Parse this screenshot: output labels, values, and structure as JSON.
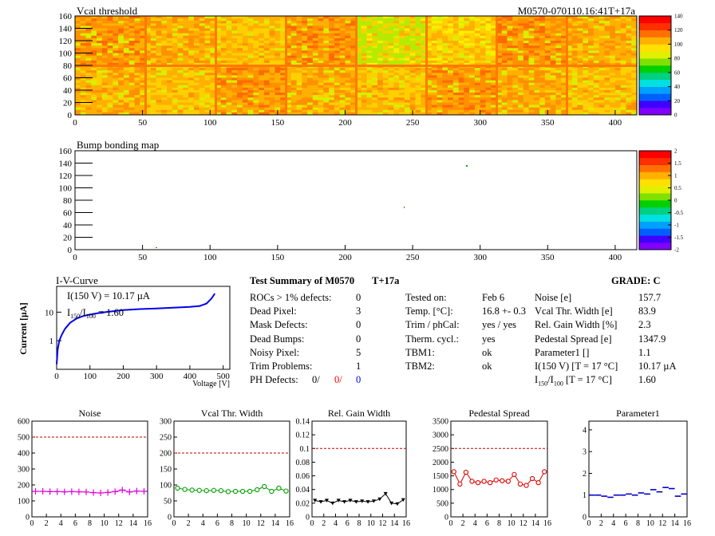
{
  "module_id": "M0570-070110.16:41T+17a",
  "colors": {
    "red": "#ff0000",
    "blue": "#0000ff",
    "magenta": "#e000e0",
    "green": "#00a000",
    "black": "#000000",
    "dashed": "#c00000"
  },
  "vcal_map": {
    "title": "Vcal threshold",
    "x_ticks": [
      "0",
      "50",
      "100",
      "150",
      "200",
      "250",
      "300",
      "350",
      "400"
    ],
    "y_ticks": [
      "0",
      "20",
      "40",
      "60",
      "80",
      "100",
      "120",
      "140",
      "160"
    ],
    "palette_ticks": [
      "0",
      "20",
      "40",
      "60",
      "80",
      "100",
      "120",
      "140"
    ],
    "xlim": [
      0,
      416
    ],
    "ylim": [
      0,
      160
    ]
  },
  "bump_map": {
    "title": "Bump bonding map",
    "x_ticks": [
      "0",
      "50",
      "100",
      "150",
      "200",
      "250",
      "300",
      "350",
      "400"
    ],
    "y_ticks": [
      "0",
      "20",
      "40",
      "60",
      "80",
      "100",
      "120",
      "140",
      "160"
    ],
    "palette_ticks": [
      "-2",
      "-1.5",
      "-1",
      "-0.5",
      "0",
      "0.5",
      "1",
      "1.5",
      "2"
    ],
    "xlim": [
      0,
      416
    ],
    "ylim": [
      0,
      160
    ]
  },
  "iv_curve": {
    "title": "I-V-Curve",
    "annotation_1": "I(150 V) = 10.17 µA",
    "annotation_2_a": "I",
    "annotation_2_b": "150",
    "annotation_2_c": "/I",
    "annotation_2_d": "100",
    "annotation_2_e": " = 1.60",
    "ylabel": "Current [µA]",
    "xlabel": "Voltage [V]",
    "x_ticks": [
      "0",
      "100",
      "200",
      "300",
      "400",
      "500"
    ],
    "y_ticks": [
      "1",
      "10"
    ],
    "xlim": [
      0,
      520
    ],
    "ylim": [
      0.1,
      80
    ],
    "log_y": true
  },
  "summary": {
    "title": "Test Summary of M0570",
    "tag": "T+17a",
    "grade_label": "GRADE:",
    "grade": "C",
    "left": [
      {
        "label": "ROCs > 1% defects:",
        "value": "0"
      },
      {
        "label": "Dead Pixel:",
        "value": "3"
      },
      {
        "label": "Mask Defects:",
        "value": "0"
      },
      {
        "label": "Dead Bumps:",
        "value": "0"
      },
      {
        "label": "Noisy Pixel:",
        "value": "5"
      },
      {
        "label": "Trim Problems:",
        "value": "1"
      }
    ],
    "ph_defects_label": "PH Defects:",
    "ph_defects": [
      "0/",
      "0/",
      "0"
    ],
    "middle": [
      {
        "label": "Tested on:",
        "value": "Feb 6"
      },
      {
        "label": "Temp. [°C]:",
        "value": "16.8 +- 0.3"
      },
      {
        "label": "Trim / phCal:",
        "value": "yes / yes"
      },
      {
        "label": "Therm. cycl.:",
        "value": "yes"
      },
      {
        "label": "TBM1:",
        "value": "ok"
      },
      {
        "label": "TBM2:",
        "value": "ok"
      }
    ],
    "right": [
      {
        "label": "Noise [e]",
        "value": "157.7"
      },
      {
        "label": "Vcal Thr. Width [e]",
        "value": "83.9"
      },
      {
        "label": "Rel. Gain Width [%]",
        "value": "2.3"
      },
      {
        "label": "Pedestal Spread [e]",
        "value": "1347.9"
      },
      {
        "label": "Parameter1 []",
        "value": "1.1"
      },
      {
        "label": "I(150 V) [T = 17 °C]",
        "value": "10.17 µA"
      }
    ],
    "ratio_label_a": "I",
    "ratio_label_b": "150",
    "ratio_label_c": "/I",
    "ratio_label_d": "100",
    "ratio_label_e": " [T = 17 °C]",
    "ratio_value": "1.60"
  },
  "chart_data": [
    {
      "type": "line",
      "title": "Noise",
      "x": [
        0,
        1,
        2,
        3,
        4,
        5,
        6,
        7,
        8,
        9,
        10,
        11,
        12,
        13,
        14,
        15
      ],
      "values": [
        160,
        160,
        158,
        158,
        157,
        158,
        157,
        156,
        152,
        150,
        153,
        158,
        168,
        156,
        162,
        160
      ],
      "ylim": [
        0,
        600
      ],
      "xlim": [
        0,
        16
      ],
      "threshold": 500,
      "y_ticks": [
        "0",
        "100",
        "200",
        "300",
        "400",
        "500",
        "600"
      ],
      "x_ticks": [
        "0",
        "2",
        "4",
        "6",
        "8",
        "10",
        "12",
        "14",
        "16"
      ],
      "marker": "cross",
      "color": "#e000e0"
    },
    {
      "type": "line",
      "title": "Vcal Thr. Width",
      "x": [
        0,
        1,
        2,
        3,
        4,
        5,
        6,
        7,
        8,
        9,
        10,
        11,
        12,
        13,
        14,
        15
      ],
      "values": [
        90,
        86,
        84,
        83,
        82,
        83,
        82,
        79,
        80,
        80,
        80,
        85,
        95,
        80,
        90,
        81
      ],
      "ylim": [
        0,
        300
      ],
      "xlim": [
        0,
        16
      ],
      "threshold": 200,
      "y_ticks": [
        "0",
        "50",
        "100",
        "150",
        "200",
        "250",
        "300"
      ],
      "x_ticks": [
        "0",
        "2",
        "4",
        "6",
        "8",
        "10",
        "12",
        "14",
        "16"
      ],
      "marker": "circle",
      "color": "#00a000"
    },
    {
      "type": "line",
      "title": "Rel. Gain Width",
      "x": [
        0,
        1,
        2,
        3,
        4,
        5,
        6,
        7,
        8,
        9,
        10,
        11,
        12,
        13,
        14,
        15
      ],
      "values": [
        0.024,
        0.022,
        0.024,
        0.02,
        0.024,
        0.022,
        0.024,
        0.022,
        0.023,
        0.022,
        0.023,
        0.026,
        0.034,
        0.02,
        0.019,
        0.025
      ],
      "ylim": [
        0,
        0.14
      ],
      "xlim": [
        0,
        16
      ],
      "threshold": 0.1,
      "y_ticks": [
        "0",
        "0.02",
        "0.04",
        "0.06",
        "0.08",
        "0.1",
        "0.12",
        "0.14"
      ],
      "x_ticks": [
        "0",
        "2",
        "4",
        "6",
        "8",
        "10",
        "12",
        "14",
        "16"
      ],
      "marker": "triangle",
      "color": "#000000"
    },
    {
      "type": "line",
      "title": "Pedestal Spread",
      "x": [
        0,
        1,
        2,
        3,
        4,
        5,
        6,
        7,
        8,
        9,
        10,
        11,
        12,
        13,
        14,
        15
      ],
      "values": [
        1650,
        1200,
        1630,
        1300,
        1250,
        1300,
        1250,
        1350,
        1320,
        1300,
        1550,
        1200,
        1150,
        1400,
        1250,
        1650
      ],
      "ylim": [
        0,
        3500
      ],
      "xlim": [
        0,
        16
      ],
      "threshold": 2500,
      "y_ticks": [
        "0",
        "500",
        "1000",
        "1500",
        "2000",
        "2500",
        "3000",
        "3500"
      ],
      "x_ticks": [
        "0",
        "2",
        "4",
        "6",
        "8",
        "10",
        "12",
        "14",
        "16"
      ],
      "marker": "circle",
      "color": "#e00000"
    },
    {
      "type": "scatter",
      "title": "Parameter1",
      "x": [
        0,
        1,
        2,
        3,
        4,
        5,
        6,
        7,
        8,
        9,
        10,
        11,
        12,
        13,
        14,
        15
      ],
      "values": [
        1.0,
        1.0,
        0.95,
        0.9,
        1.0,
        1.0,
        1.05,
        1.0,
        1.1,
        1.05,
        1.25,
        1.15,
        1.35,
        1.3,
        0.95,
        1.05
      ],
      "ylim": [
        0,
        4.4
      ],
      "xlim": [
        0,
        16
      ],
      "y_ticks": [
        "0",
        "1",
        "2",
        "3",
        "4"
      ],
      "x_ticks": [
        "0",
        "2",
        "4",
        "6",
        "8",
        "10",
        "12",
        "14",
        "16"
      ],
      "marker": "hline",
      "color": "#0000cc"
    }
  ]
}
